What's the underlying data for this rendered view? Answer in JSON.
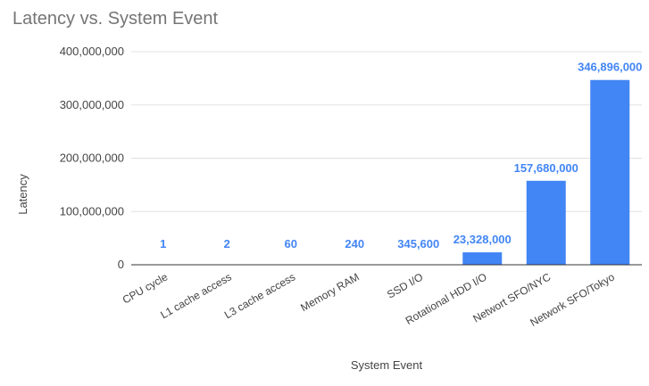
{
  "chart_data": {
    "type": "bar",
    "title": "Latency vs. System Event",
    "xlabel": "System Event",
    "ylabel": "Latency",
    "categories": [
      "CPU cycle",
      "L1 cache access",
      "L3 cache access",
      "Memory RAM",
      "SSD I/O",
      "Rotational HDD I/O",
      "Networt SFO/NYC",
      "Network SFO/Tokyo"
    ],
    "values": [
      1,
      2,
      60,
      240,
      345600,
      23328000,
      157680000,
      346896000
    ],
    "data_labels": [
      "1",
      "2",
      "60",
      "240",
      "345,600",
      "23,328,000",
      "157,680,000",
      "346,896,000"
    ],
    "ylim": [
      0,
      400000000
    ],
    "yticks": [
      0,
      100000000,
      200000000,
      300000000,
      400000000
    ],
    "ytick_labels": [
      "0",
      "100,000,000",
      "200,000,000",
      "300,000,000",
      "400,000,000"
    ],
    "grid": true,
    "legend": "none",
    "colors": {
      "bar": "#4285f4",
      "data_label": "#4285f4",
      "title": "#757575",
      "axis_text": "#444444",
      "grid": "#e0e0e0",
      "baseline": "#333333"
    }
  }
}
